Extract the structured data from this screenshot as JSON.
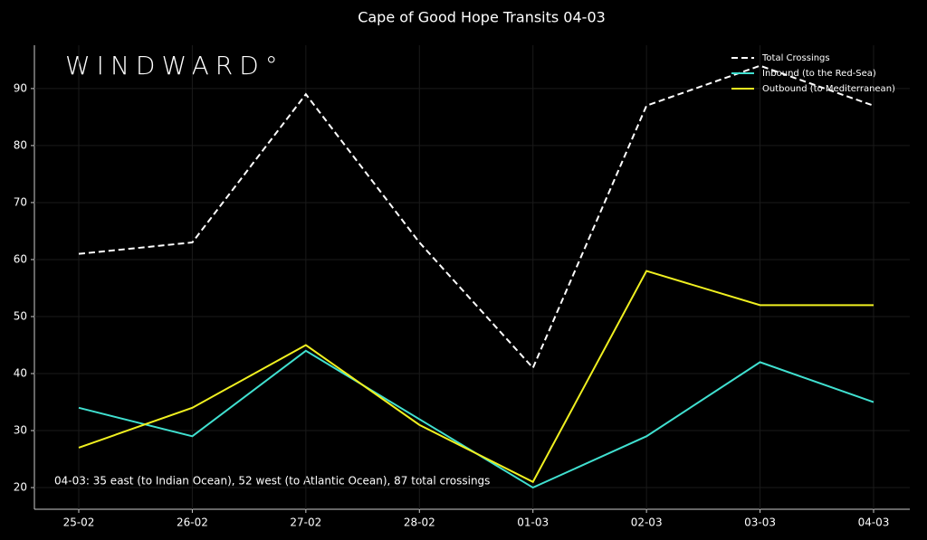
{
  "chart_data": {
    "type": "line",
    "title": "Cape of Good Hope Transits 04-03",
    "logo": "WINDWARD°",
    "annotation": "04-03: 35 east (to Indian Ocean), 52 west (to Atlantic Ocean), 87 total crossings",
    "categories": [
      "25-02",
      "26-02",
      "27-02",
      "28-02",
      "01-03",
      "02-03",
      "03-03",
      "04-03"
    ],
    "series": [
      {
        "name": "Total Crossings",
        "color": "#ffffff",
        "line_style": "dashed",
        "values": [
          61,
          63,
          89,
          63,
          41,
          87,
          94,
          87
        ]
      },
      {
        "name": "Inbound (to the Red-Sea)",
        "color": "#40e0d0",
        "line_style": "solid",
        "values": [
          34,
          29,
          44,
          32,
          20,
          29,
          42,
          35
        ]
      },
      {
        "name": "Outbound (to Mediterranean)",
        "color": "#f0f020",
        "line_style": "solid",
        "values": [
          27,
          34,
          45,
          31,
          21,
          58,
          52,
          52
        ]
      }
    ],
    "ylim": [
      16.2,
      97.6
    ],
    "yticks": [
      20,
      30,
      40,
      50,
      60,
      70,
      80,
      90
    ],
    "grid": true,
    "legend": "upper right"
  }
}
